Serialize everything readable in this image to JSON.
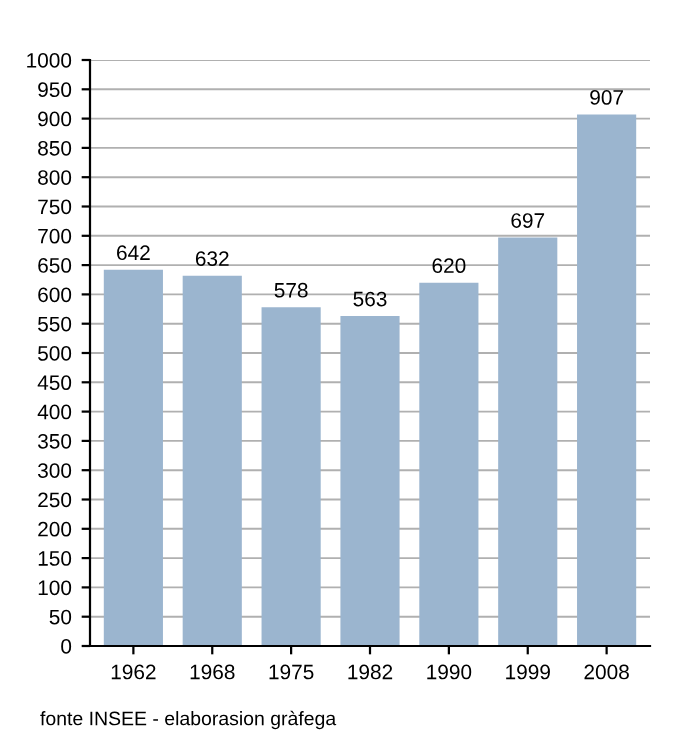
{
  "chart_data": {
    "type": "bar",
    "categories": [
      "1962",
      "1968",
      "1975",
      "1982",
      "1990",
      "1999",
      "2008"
    ],
    "values": [
      642,
      632,
      578,
      563,
      620,
      697,
      907
    ],
    "color": "#9bb5cf",
    "data_labels": true,
    "ylim": [
      0,
      1000
    ],
    "yticks": [
      0,
      50,
      100,
      150,
      200,
      250,
      300,
      350,
      400,
      450,
      500,
      550,
      600,
      650,
      700,
      750,
      800,
      850,
      900,
      950,
      1000
    ],
    "grid": "y",
    "annotations": [
      "fonte INSEE - elaborasion gràfega"
    ]
  }
}
